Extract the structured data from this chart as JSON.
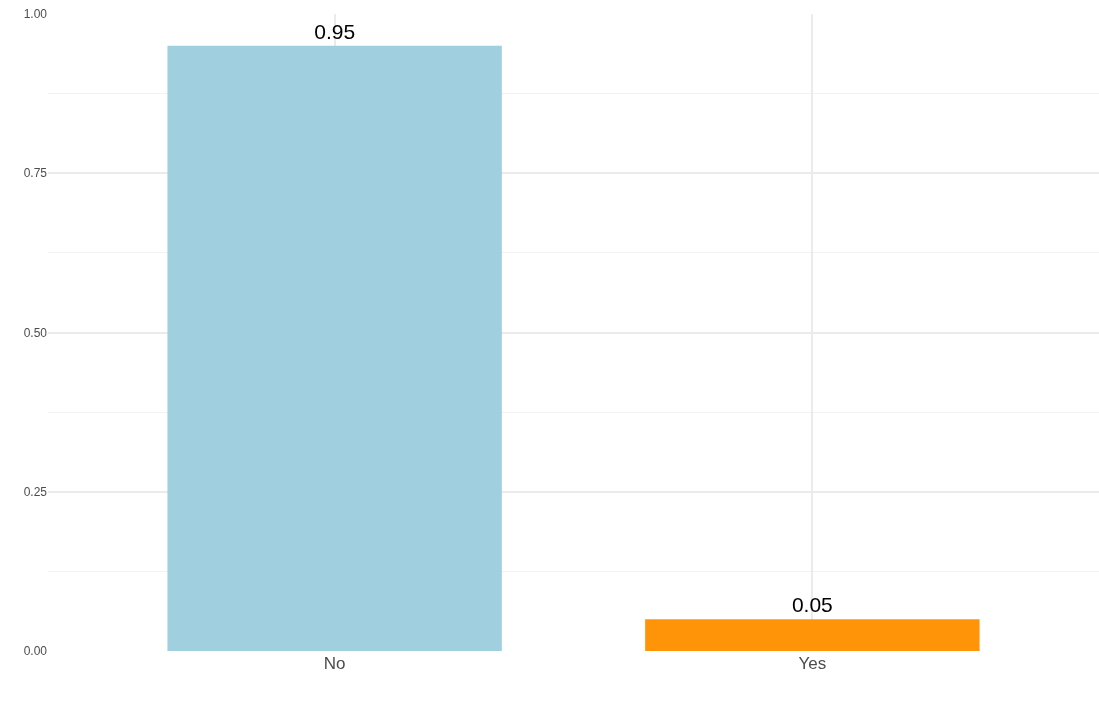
{
  "chart_data": {
    "type": "bar",
    "categories": [
      "No",
      "Yes"
    ],
    "values": [
      0.95,
      0.05
    ],
    "colors": [
      "#a0cfe0",
      "#ff9409"
    ],
    "data_labels": true,
    "ylim": [
      0,
      1.0
    ],
    "yticks": [
      {
        "value": 0,
        "label": "0.00"
      },
      {
        "value": 0.25,
        "label": "0.25"
      },
      {
        "value": 0.5,
        "label": "0.50"
      },
      {
        "value": 0.75,
        "label": "0.75"
      },
      {
        "value": 1.0,
        "label": "1.00"
      }
    ],
    "grid": true
  }
}
